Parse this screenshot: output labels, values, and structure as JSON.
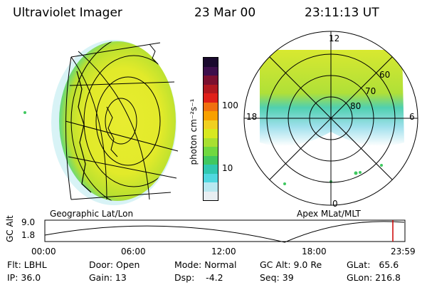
{
  "header": {
    "instrument": "Ultraviolet Imager",
    "date": "23 Mar 00",
    "time": "23:11:13 UT"
  },
  "left_panel": {
    "caption": "Geographic Lat/Lon"
  },
  "right_panel": {
    "caption": "Apex MLat/MLT",
    "mlt_labels": {
      "top": "12",
      "left": "18",
      "right": "6",
      "bottom": "0"
    },
    "lat_labels": [
      "60",
      "70",
      "80"
    ]
  },
  "colorbar": {
    "unit_label": "photon cm⁻²s⁻¹",
    "tick_labels": [
      "100",
      "10"
    ],
    "colors": [
      "#1a0a2e",
      "#3d0f4c",
      "#7a1030",
      "#b01820",
      "#e0201a",
      "#f07010",
      "#f8a000",
      "#f0d020",
      "#d8e820",
      "#a8e030",
      "#70d840",
      "#40c860",
      "#30c8b0",
      "#50d8e0",
      "#b8e8f0",
      "#e8eef2"
    ]
  },
  "timeline": {
    "axis_label": "GC Alt",
    "y_ticks": [
      "9.0",
      "1.8"
    ],
    "x_ticks": [
      "00:00",
      "06:00",
      "12:00",
      "18:00",
      "23:59"
    ],
    "current_marker_color": "#cc0000"
  },
  "status": {
    "flt": "Flt: LBHL",
    "ip": "IP: 36.0",
    "door": "Door: Open",
    "gain": "Gain: 13",
    "mode": "Mode: Normal",
    "dsp": "Dsp:    -4.2",
    "gc_alt": "GC Alt: 9.0 Re",
    "seq": "Seq: 39",
    "glat": "GLat:   65.6",
    "glon": "GLon: 216.8"
  }
}
